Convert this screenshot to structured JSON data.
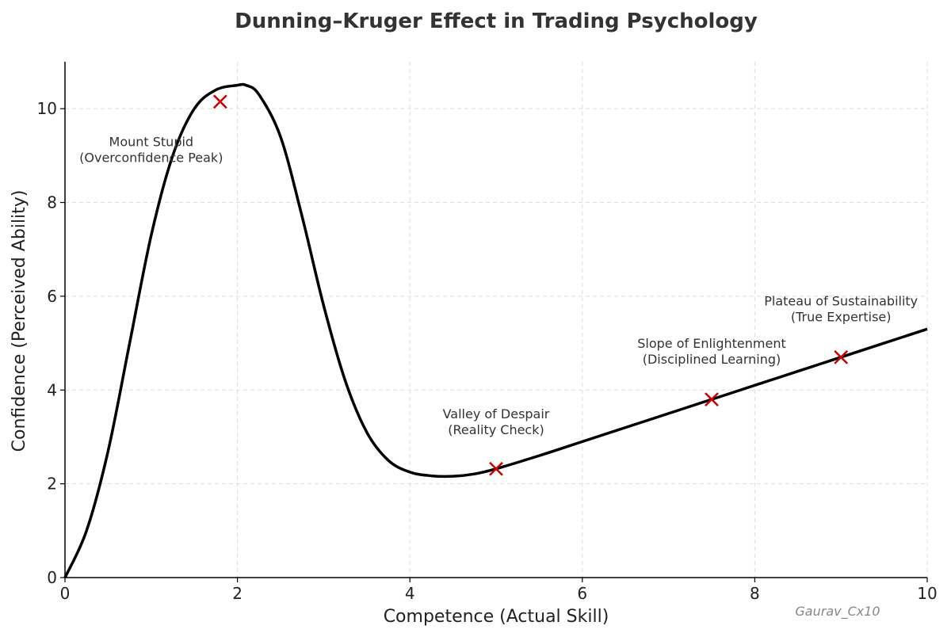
{
  "chart_data": {
    "type": "line",
    "title": "Dunning–Kruger Effect in Trading Psychology",
    "xlabel": "Competence (Actual Skill)",
    "ylabel": "Confidence (Perceived Ability)",
    "xlim": [
      0,
      10
    ],
    "ylim": [
      0,
      11
    ],
    "xticks": [
      0,
      2,
      4,
      6,
      8,
      10
    ],
    "yticks": [
      0,
      2,
      4,
      6,
      8,
      10
    ],
    "grid": true,
    "series": [
      {
        "color": "#000000",
        "x": [
          0,
          0.25,
          0.5,
          0.75,
          1.0,
          1.25,
          1.5,
          1.75,
          2.0,
          2.1,
          2.25,
          2.5,
          2.75,
          3.0,
          3.25,
          3.5,
          3.75,
          4.0,
          4.25,
          4.5,
          4.75,
          5.0,
          5.5,
          6.0,
          6.5,
          7.0,
          7.5,
          8.0,
          8.5,
          9.0,
          9.5,
          10.0
        ],
        "y": [
          0,
          1.0,
          2.7,
          5.0,
          7.3,
          9.0,
          10.0,
          10.4,
          10.5,
          10.5,
          10.3,
          9.4,
          7.7,
          5.8,
          4.2,
          3.1,
          2.5,
          2.25,
          2.17,
          2.16,
          2.21,
          2.32,
          2.6,
          2.9,
          3.2,
          3.5,
          3.8,
          4.1,
          4.4,
          4.7,
          5.0,
          5.3
        ]
      }
    ],
    "markers": [
      {
        "x": 1.8,
        "y": 10.15,
        "color": "#cc0000"
      },
      {
        "x": 5.0,
        "y": 2.32,
        "color": "#cc0000"
      },
      {
        "x": 7.5,
        "y": 3.8,
        "color": "#cc0000"
      },
      {
        "x": 9.0,
        "y": 4.7,
        "color": "#cc0000"
      }
    ],
    "annotations": [
      {
        "x": 1.0,
        "y": 9.2,
        "lines": [
          "Mount Stupid",
          "(Overconfidence Peak)"
        ]
      },
      {
        "x": 5.0,
        "y": 3.4,
        "lines": [
          "Valley of Despair",
          "(Reality Check)"
        ]
      },
      {
        "x": 7.5,
        "y": 4.9,
        "lines": [
          "Slope of Enlightenment",
          "(Disciplined Learning)"
        ]
      },
      {
        "x": 9.0,
        "y": 5.8,
        "lines": [
          "Plateau of Sustainability",
          "(True Expertise)"
        ]
      }
    ],
    "watermark": "Gaurav_Cx10"
  }
}
